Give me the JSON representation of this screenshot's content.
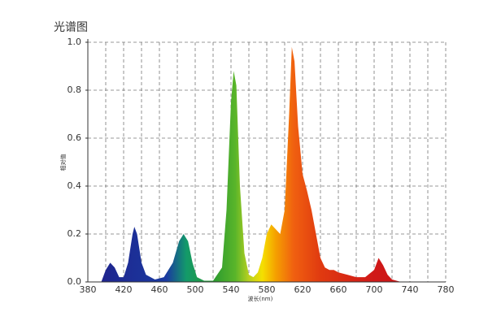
{
  "chart_data": {
    "type": "area",
    "title": "光谱图",
    "x_label": "波长(nm)",
    "y_label": "相对值",
    "x": [
      380,
      395,
      400,
      405,
      410,
      415,
      420,
      425,
      430,
      432,
      435,
      440,
      445,
      455,
      465,
      475,
      482,
      487,
      492,
      497,
      502,
      510,
      520,
      530,
      535,
      540,
      543,
      546,
      550,
      555,
      560,
      565,
      570,
      575,
      580,
      585,
      590,
      595,
      600,
      605,
      608,
      611,
      615,
      620,
      625,
      630,
      635,
      640,
      645,
      650,
      655,
      660,
      670,
      680,
      690,
      700,
      705,
      710,
      715,
      720,
      725,
      730
    ],
    "values": [
      0,
      0,
      0.05,
      0.08,
      0.06,
      0.02,
      0.02,
      0.08,
      0.2,
      0.23,
      0.2,
      0.08,
      0.03,
      0.01,
      0.02,
      0.08,
      0.17,
      0.2,
      0.17,
      0.08,
      0.02,
      0.005,
      0.005,
      0.06,
      0.3,
      0.75,
      0.88,
      0.82,
      0.4,
      0.12,
      0.03,
      0.02,
      0.04,
      0.1,
      0.2,
      0.24,
      0.22,
      0.2,
      0.3,
      0.7,
      0.98,
      0.92,
      0.65,
      0.45,
      0.38,
      0.3,
      0.2,
      0.1,
      0.06,
      0.05,
      0.05,
      0.04,
      0.03,
      0.02,
      0.02,
      0.05,
      0.1,
      0.07,
      0.03,
      0.01,
      0.005,
      0
    ],
    "xlim": [
      380,
      780
    ],
    "xticks": [
      380,
      420,
      460,
      500,
      540,
      580,
      620,
      660,
      700,
      740,
      780
    ],
    "ylim": [
      0,
      1
    ],
    "yticks": [
      {
        "value": 0,
        "label": "0.0"
      },
      0.2,
      0.4,
      0.6,
      0.8,
      {
        "value": 1,
        "label": "1.0"
      }
    ],
    "grid": true
  }
}
